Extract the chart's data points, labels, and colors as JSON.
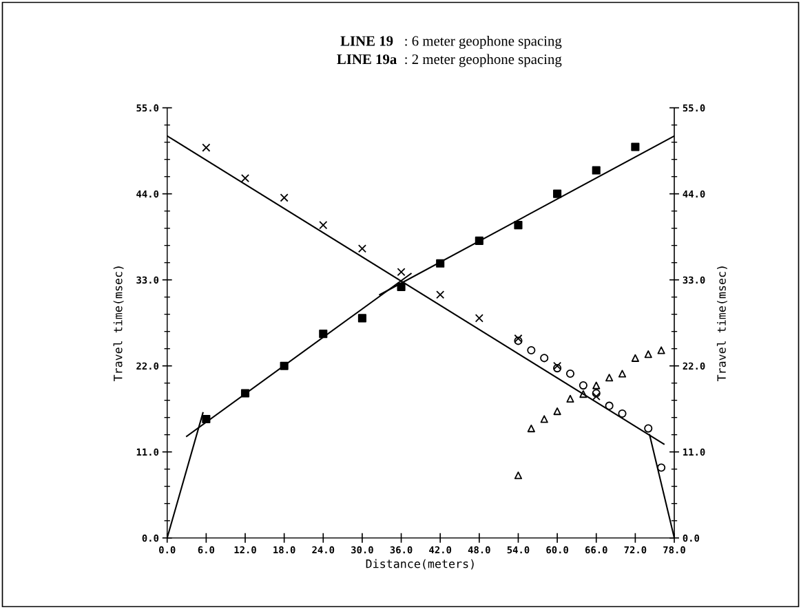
{
  "chart_data": {
    "type": "scatter",
    "title": "LINE 19  : 6 meter geophone spacing",
    "subtitle": "LINE 19a : 2 meter geophone spacing",
    "xlabel": "Distance(meters)",
    "ylabel": "Travel time(msec)",
    "y2label": "Travel time(msec)",
    "xlim": [
      0,
      78
    ],
    "ylim": [
      0,
      55
    ],
    "y2lim": [
      0,
      55
    ],
    "xticks": [
      {
        "value": 0,
        "label": "0.0"
      },
      {
        "value": 6,
        "label": "6.0"
      },
      {
        "value": 12,
        "label": "12.0"
      },
      {
        "value": 18,
        "label": "18.0"
      },
      {
        "value": 24,
        "label": "24.0"
      },
      {
        "value": 30,
        "label": "30.0"
      },
      {
        "value": 36,
        "label": "36.0"
      },
      {
        "value": 42,
        "label": "42.0"
      },
      {
        "value": 48,
        "label": "48.0"
      },
      {
        "value": 54,
        "label": "54.0"
      },
      {
        "value": 60,
        "label": "60.0"
      },
      {
        "value": 66,
        "label": "66.0"
      },
      {
        "value": 72,
        "label": "72.0"
      },
      {
        "value": 78,
        "label": "78.0"
      }
    ],
    "yticks": [
      {
        "value": 0,
        "label": "0.0"
      },
      {
        "value": 11,
        "label": "11.0"
      },
      {
        "value": 22,
        "label": "22.0"
      },
      {
        "value": 33,
        "label": "33.0"
      },
      {
        "value": 44,
        "label": "44.0"
      },
      {
        "value": 55,
        "label": "55.0"
      }
    ],
    "y2ticks": [
      {
        "value": 0,
        "label": "0.0"
      },
      {
        "value": 11,
        "label": "11.0"
      },
      {
        "value": 22,
        "label": "22.0"
      },
      {
        "value": 33,
        "label": "33.0"
      },
      {
        "value": 44,
        "label": "44.0"
      },
      {
        "value": 55,
        "label": "55.0"
      }
    ],
    "grid": false,
    "legend": false,
    "series": [
      {
        "marker": "cross",
        "color": "#000000",
        "x": [
          6,
          12,
          18,
          24,
          30,
          36,
          42,
          48,
          54,
          60,
          66
        ],
        "values": [
          49.9,
          46.0,
          43.5,
          40.0,
          37.0,
          34.0,
          31.1,
          28.1,
          25.5,
          22.0,
          18.1
        ]
      },
      {
        "marker": "square",
        "color": "#000000",
        "x": [
          6,
          12,
          18,
          24,
          30,
          36,
          42,
          48,
          54,
          60,
          66,
          72
        ],
        "values": [
          15.2,
          18.5,
          22.0,
          26.1,
          28.1,
          32.1,
          35.1,
          38.0,
          40.0,
          44.0,
          47.0,
          50.0
        ]
      },
      {
        "marker": "circle",
        "color": "#000000",
        "x": [
          54,
          56,
          58,
          60,
          62,
          64,
          66,
          68,
          70,
          74,
          76
        ],
        "values": [
          25.2,
          24.0,
          23.0,
          21.7,
          21.0,
          19.5,
          18.5,
          16.9,
          15.9,
          14.0,
          9.0
        ]
      },
      {
        "marker": "triangle",
        "color": "#000000",
        "x": [
          54,
          56,
          58,
          60,
          62,
          64,
          66,
          68,
          70,
          72,
          74,
          76
        ],
        "values": [
          8.0,
          14.0,
          15.2,
          16.2,
          17.8,
          18.4,
          19.5,
          20.5,
          21.0,
          23.0,
          23.5,
          24.0
        ]
      },
      {
        "type": "line",
        "color": "#000000",
        "x": [
          0,
          76.4
        ],
        "values": [
          51.4,
          12.0
        ]
      },
      {
        "type": "line",
        "color": "#000000",
        "x": [
          3,
          37.5
        ],
        "values": [
          13.0,
          33.8
        ]
      },
      {
        "type": "line",
        "color": "#000000",
        "x": [
          32.7,
          78
        ],
        "values": [
          31.1,
          51.4
        ]
      },
      {
        "type": "line",
        "color": "#000000",
        "x": [
          0,
          5.5
        ],
        "values": [
          0,
          16.0
        ]
      },
      {
        "type": "line",
        "color": "#000000",
        "x": [
          74.2,
          78
        ],
        "values": [
          13.2,
          0
        ]
      }
    ]
  }
}
